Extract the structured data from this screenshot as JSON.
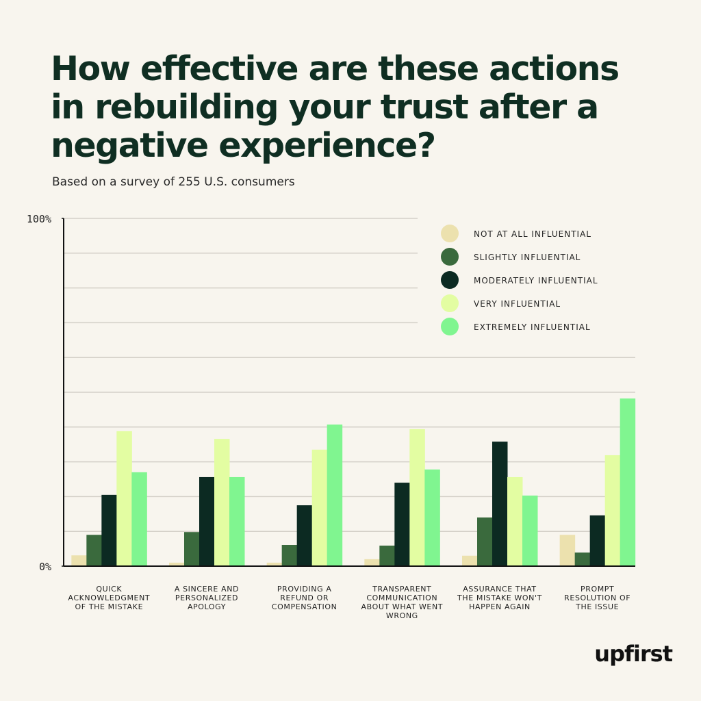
{
  "chart_data": {
    "type": "bar",
    "title": [
      "How effective are these actions",
      "in rebuilding your trust after a",
      "negative experience?"
    ],
    "subtitle": "Based on a survey of 255 U.S. consumers",
    "categories": [
      [
        "QUICK",
        "ACKNOWLEDGMENT",
        "OF THE MISTAKE"
      ],
      [
        "A SINCERE AND",
        "PERSONALIZED",
        "APOLOGY"
      ],
      [
        "PROVIDING A",
        "REFUND OR",
        "COMPENSATION"
      ],
      [
        "TRANSPARENT",
        "COMMUNICATION",
        "ABOUT WHAT WENT",
        "WRONG"
      ],
      [
        "ASSURANCE THAT",
        "THE MISTAKE WON'T",
        "HAPPEN AGAIN"
      ],
      [
        "PROMPT",
        "RESOLUTION OF",
        "THE ISSUE"
      ]
    ],
    "series": [
      {
        "name": "NOT AT ALL INFLUENTIAL",
        "color": "#ece1ae",
        "values": [
          3.1,
          1,
          1,
          2,
          3,
          9
        ]
      },
      {
        "name": "SLIGHTLY INFLUENTIAL",
        "color": "#3a6a3d",
        "values": [
          9,
          9.8,
          6.1,
          5.9,
          14,
          3.9
        ]
      },
      {
        "name": "MODERATELY INFLUENTIAL",
        "color": "#0c2a22",
        "values": [
          20.5,
          25.6,
          17.5,
          24,
          35.8,
          14.6
        ]
      },
      {
        "name": "VERY INFLUENTIAL",
        "color": "#e3fda2",
        "values": [
          38.8,
          36.6,
          33.5,
          39.4,
          25.6,
          31.9
        ]
      },
      {
        "name": "EXTREMELY INFLUENTIAL",
        "color": "#80f590",
        "values": [
          27,
          25.6,
          40.7,
          27.8,
          20.3,
          48.2
        ]
      }
    ],
    "ylim": [
      0,
      100
    ],
    "yticks": [
      {
        "value": 0,
        "label": "0%"
      },
      {
        "value": 100,
        "label": "100%"
      }
    ],
    "grid": true,
    "grid_values": [
      10,
      20,
      30,
      40,
      50,
      60,
      70,
      80,
      90,
      100
    ],
    "legend": "top-right",
    "logo": "upfirst"
  }
}
